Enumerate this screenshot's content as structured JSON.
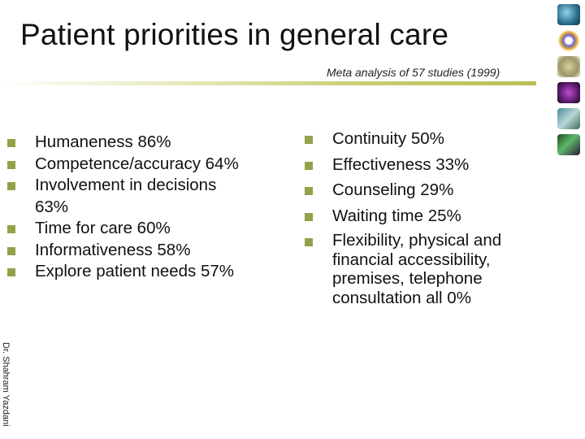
{
  "slide": {
    "title": "Patient priorities in general care",
    "subtitle": "Meta analysis of 57 studies (1999)",
    "author": "Dr. Shahram Yazdani"
  },
  "left_items": [
    "Humaneness 86%",
    "Competence/accuracy 64%",
    "Involvement in decisions 63%",
    "Time for care 60%",
    "Informativeness 58%",
    "Explore patient needs 57%"
  ],
  "right_items": [
    "Continuity 50%",
    "Effectiveness 33%",
    "Counseling 29%",
    "Waiting time 25%",
    "Flexibility, physical and financial accessibility, premises, telephone consultation all 0%"
  ],
  "thumbnails": [
    "globe-icon",
    "molecule-icon",
    "cell-icon",
    "brain-scan-icon",
    "microscope-icon",
    "tissue-icon"
  ],
  "colors": {
    "bullet": "#95a14a",
    "rule": "#c7cc6e"
  }
}
